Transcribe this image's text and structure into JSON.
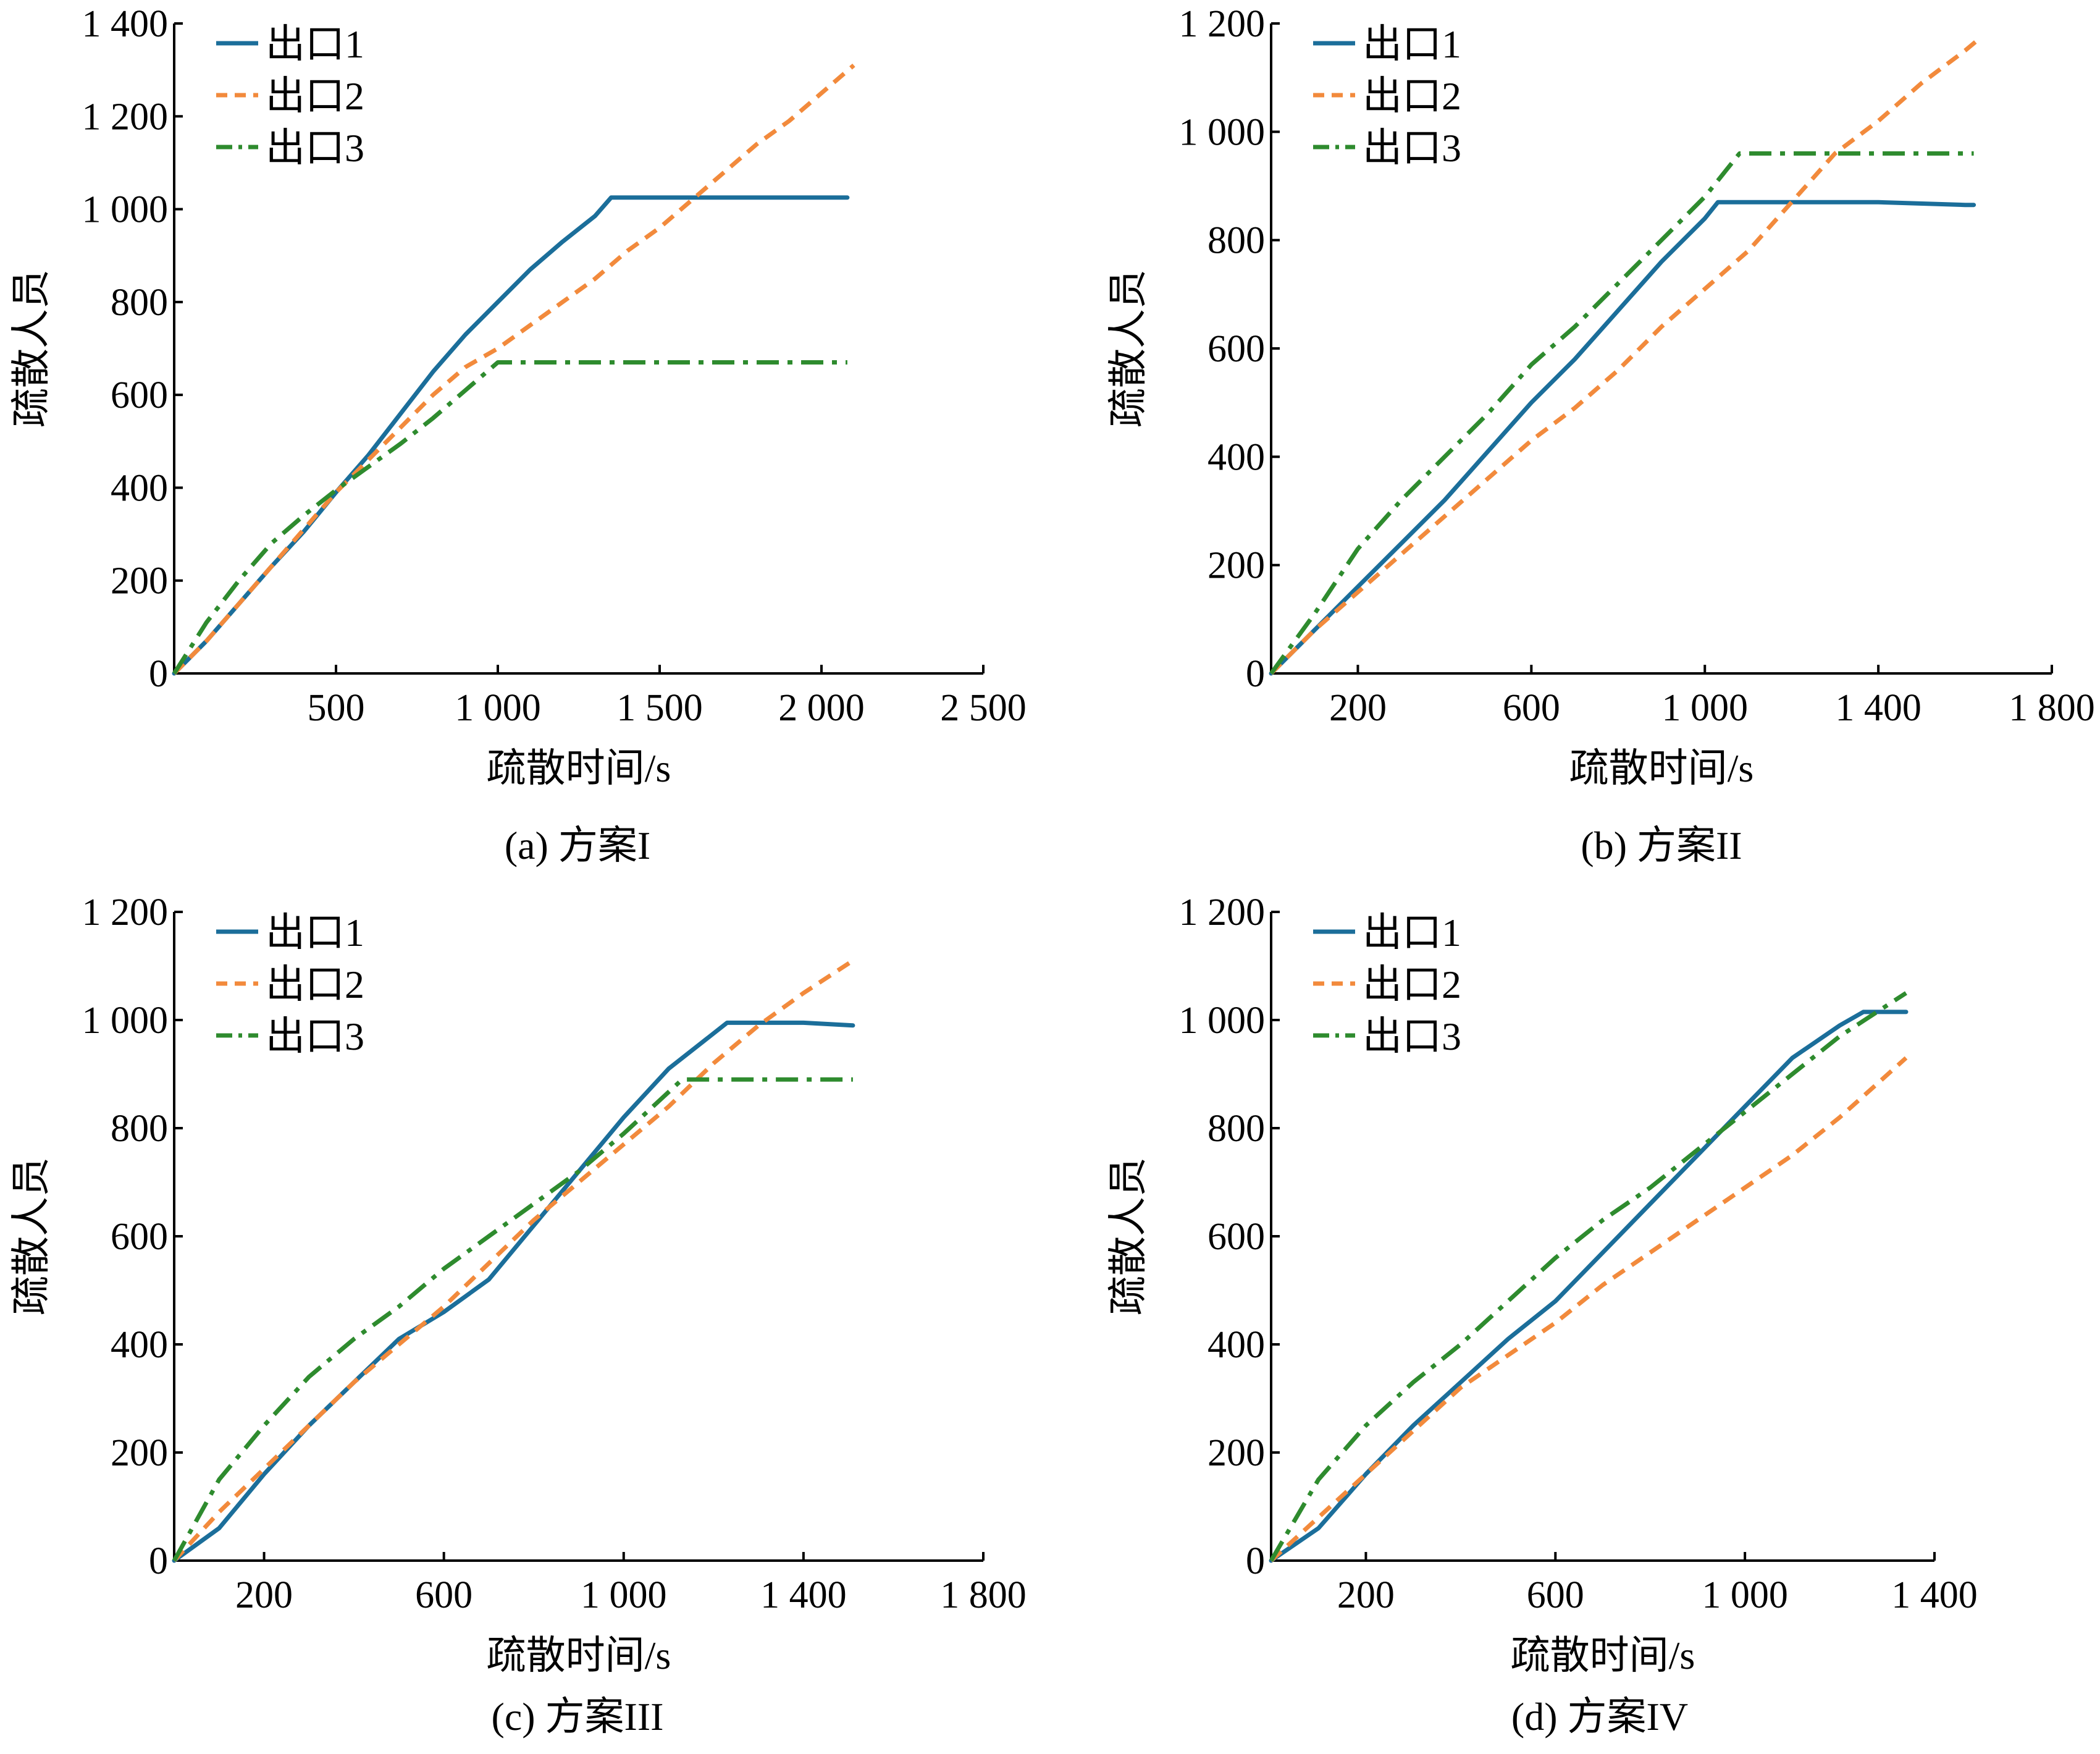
{
  "legend": [
    "出口1",
    "出口2",
    "出口3"
  ],
  "series_colors": [
    "#1b6e9a",
    "#f28a3c",
    "#2e8b2e"
  ],
  "series_dash": [
    "solid",
    "dashed",
    "dashdot"
  ],
  "chart_data": [
    {
      "type": "line",
      "caption": "(a) 方案I",
      "xlabel": "疏散时间/s",
      "ylabel": "疏散人员",
      "xlim": [
        0,
        2500
      ],
      "ylim": [
        0,
        1400
      ],
      "xticks": [
        500,
        1000,
        1500,
        2000,
        2500
      ],
      "xtick_labels": [
        "500",
        "1 000",
        "1 500",
        "2 000",
        "2 500"
      ],
      "yticks": [
        0,
        200,
        400,
        600,
        800,
        1000,
        1200,
        1400
      ],
      "ytick_labels": [
        "0",
        "200",
        "400",
        "600",
        "800",
        "1 000",
        "1 200",
        "1 400"
      ],
      "grid": false,
      "legend_position": "top-left",
      "series": [
        {
          "name": "出口1",
          "x": [
            0,
            100,
            200,
            300,
            400,
            500,
            600,
            700,
            800,
            900,
            1000,
            1100,
            1200,
            1300,
            1350,
            1500,
            1800,
            2080
          ],
          "y": [
            0,
            70,
            150,
            230,
            305,
            390,
            470,
            560,
            650,
            730,
            800,
            870,
            930,
            985,
            1025,
            1025,
            1025,
            1025
          ]
        },
        {
          "name": "出口2",
          "x": [
            0,
            100,
            200,
            300,
            400,
            500,
            600,
            700,
            800,
            900,
            1000,
            1100,
            1200,
            1300,
            1400,
            1500,
            1600,
            1700,
            1800,
            1900,
            2000,
            2100
          ],
          "y": [
            0,
            70,
            150,
            230,
            310,
            390,
            460,
            530,
            600,
            660,
            700,
            750,
            800,
            850,
            910,
            960,
            1020,
            1080,
            1140,
            1190,
            1250,
            1310
          ]
        },
        {
          "name": "出口3",
          "x": [
            0,
            100,
            200,
            300,
            400,
            500,
            600,
            700,
            800,
            900,
            1000,
            1100,
            1300,
            1500,
            1800,
            2080
          ],
          "y": [
            0,
            110,
            200,
            280,
            340,
            395,
            445,
            495,
            550,
            610,
            670,
            670,
            670,
            670,
            670,
            670
          ]
        }
      ]
    },
    {
      "type": "line",
      "caption": "(b) 方案II",
      "xlabel": "疏散时间/s",
      "ylabel": "疏散人员",
      "xlim": [
        0,
        1800
      ],
      "ylim": [
        0,
        1200
      ],
      "xticks": [
        200,
        600,
        1000,
        1400,
        1800
      ],
      "xtick_labels": [
        "200",
        "600",
        "1 000",
        "1 400",
        "1 800"
      ],
      "yticks": [
        0,
        200,
        400,
        600,
        800,
        1000,
        1200
      ],
      "ytick_labels": [
        "0",
        "200",
        "400",
        "600",
        "800",
        "1 000",
        "1 200"
      ],
      "grid": false,
      "legend_position": "top-left",
      "series": [
        {
          "name": "出口1",
          "x": [
            0,
            100,
            200,
            300,
            400,
            500,
            600,
            700,
            800,
            900,
            1000,
            1030,
            1200,
            1400,
            1600,
            1620
          ],
          "y": [
            0,
            80,
            160,
            240,
            320,
            410,
            500,
            580,
            670,
            760,
            840,
            870,
            870,
            870,
            865,
            865
          ]
        },
        {
          "name": "出口2",
          "x": [
            0,
            100,
            200,
            300,
            400,
            500,
            600,
            700,
            800,
            900,
            1000,
            1100,
            1200,
            1300,
            1400,
            1500,
            1600,
            1630
          ],
          "y": [
            0,
            80,
            150,
            220,
            290,
            360,
            430,
            490,
            560,
            640,
            710,
            780,
            870,
            960,
            1020,
            1090,
            1150,
            1170
          ]
        },
        {
          "name": "出口3",
          "x": [
            0,
            100,
            200,
            300,
            400,
            500,
            600,
            700,
            800,
            900,
            1000,
            1080,
            1200,
            1400,
            1620
          ],
          "y": [
            0,
            110,
            230,
            320,
            400,
            480,
            570,
            640,
            720,
            800,
            880,
            960,
            960,
            960,
            960
          ]
        }
      ]
    },
    {
      "type": "line",
      "caption": "(c) 方案III",
      "xlabel": "疏散时间/s",
      "ylabel": "疏散人员",
      "xlim": [
        0,
        1800
      ],
      "ylim": [
        0,
        1200
      ],
      "xticks": [
        200,
        600,
        1000,
        1400,
        1800
      ],
      "xtick_labels": [
        "200",
        "600",
        "1 000",
        "1 400",
        "1 800"
      ],
      "yticks": [
        0,
        200,
        400,
        600,
        800,
        1000,
        1200
      ],
      "ytick_labels": [
        "0",
        "200",
        "400",
        "600",
        "800",
        "1 000",
        "1 200"
      ],
      "grid": false,
      "legend_position": "top-left",
      "series": [
        {
          "name": "出口1",
          "x": [
            0,
            100,
            200,
            300,
            400,
            500,
            600,
            700,
            800,
            900,
            1000,
            1100,
            1230,
            1400,
            1510
          ],
          "y": [
            0,
            60,
            160,
            250,
            330,
            410,
            460,
            520,
            620,
            720,
            820,
            910,
            995,
            995,
            990
          ]
        },
        {
          "name": "出口2",
          "x": [
            0,
            100,
            200,
            300,
            400,
            500,
            600,
            700,
            800,
            900,
            1000,
            1100,
            1200,
            1300,
            1400,
            1510
          ],
          "y": [
            0,
            90,
            170,
            250,
            330,
            400,
            470,
            550,
            630,
            700,
            770,
            840,
            920,
            990,
            1050,
            1110
          ]
        },
        {
          "name": "出口3",
          "x": [
            0,
            100,
            200,
            300,
            400,
            500,
            600,
            700,
            800,
            900,
            1000,
            1130,
            1300,
            1510
          ],
          "y": [
            0,
            150,
            250,
            340,
            410,
            470,
            540,
            600,
            660,
            720,
            790,
            890,
            890,
            890
          ]
        }
      ]
    },
    {
      "type": "line",
      "caption": "(d) 方案IV",
      "xlabel": "疏散时间/s",
      "ylabel": "疏散人员",
      "xlim": [
        0,
        1400
      ],
      "ylim": [
        0,
        1200
      ],
      "xticks": [
        200,
        600,
        1000,
        1400
      ],
      "xtick_labels": [
        "200",
        "600",
        "1 000",
        "1 400"
      ],
      "yticks": [
        0,
        200,
        400,
        600,
        800,
        1000,
        1200
      ],
      "ytick_labels": [
        "0",
        "200",
        "400",
        "600",
        "800",
        "1 000",
        "1 200"
      ],
      "grid": false,
      "legend_position": "top-left",
      "series": [
        {
          "name": "出口1",
          "x": [
            0,
            100,
            200,
            300,
            400,
            500,
            600,
            700,
            800,
            900,
            1000,
            1100,
            1200,
            1250,
            1340
          ],
          "y": [
            0,
            60,
            160,
            250,
            330,
            410,
            480,
            570,
            660,
            750,
            840,
            930,
            990,
            1015,
            1015
          ]
        },
        {
          "name": "出口2",
          "x": [
            0,
            100,
            200,
            300,
            400,
            500,
            600,
            700,
            800,
            900,
            1000,
            1100,
            1200,
            1340
          ],
          "y": [
            0,
            80,
            160,
            240,
            320,
            380,
            440,
            510,
            570,
            630,
            690,
            750,
            820,
            930
          ]
        },
        {
          "name": "出口3",
          "x": [
            0,
            100,
            200,
            300,
            400,
            500,
            600,
            700,
            800,
            900,
            1000,
            1100,
            1200,
            1340
          ],
          "y": [
            0,
            150,
            250,
            330,
            400,
            480,
            560,
            630,
            690,
            760,
            830,
            900,
            970,
            1050
          ]
        }
      ]
    }
  ]
}
